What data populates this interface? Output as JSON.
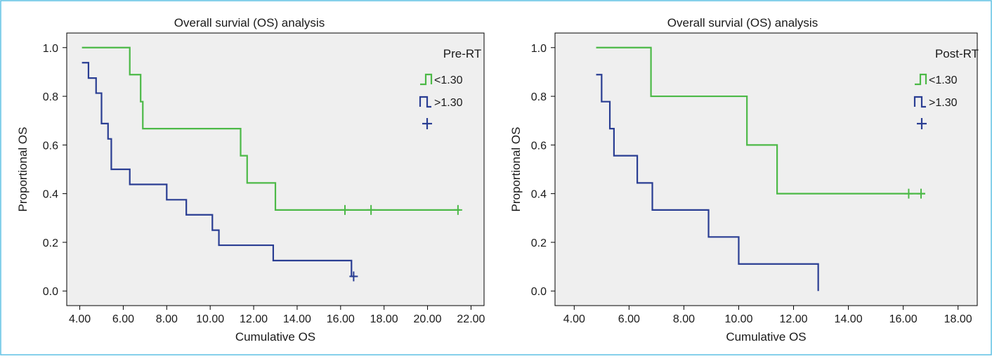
{
  "colors": {
    "plot_bg": "#efefef",
    "frame": "#5ec0e4",
    "axis": "#000000",
    "green": "#4cb947",
    "blue": "#2a3e93"
  },
  "chart_data": [
    {
      "type": "line",
      "subtype": "kaplan-meier step",
      "title": "Overall survial (OS) analysis",
      "xlabel": "Cumulative OS",
      "ylabel": "Proportional OS",
      "xlim": [
        3.4,
        22.6
      ],
      "ylim": [
        -0.06,
        1.06
      ],
      "xticks": [
        4,
        6,
        8,
        10,
        12,
        14,
        16,
        18,
        20,
        22
      ],
      "xtick_labels": [
        "4.00",
        "6.00",
        "8.00",
        "10.00",
        "12.00",
        "14.00",
        "16.00",
        "18.00",
        "20.00",
        "22.00"
      ],
      "yticks": [
        0.0,
        0.2,
        0.4,
        0.6,
        0.8,
        1.0
      ],
      "ytick_labels": [
        "0.0",
        "0.2",
        "0.4",
        "0.6",
        "0.8",
        "1.0"
      ],
      "grid": false,
      "legend": {
        "title": "Pre-RT",
        "position": "top-right",
        "entries": [
          "<1.30",
          ">1.30",
          ""
        ]
      },
      "series": [
        {
          "name": "<1.30",
          "color": "green",
          "x": [
            4.1,
            6.3,
            6.8,
            6.9,
            11.4,
            11.7,
            13.0,
            21.5
          ],
          "y": [
            1.0,
            0.889,
            0.778,
            0.667,
            0.556,
            0.444,
            0.333,
            0.333
          ],
          "censored": [
            [
              16.2,
              0.333
            ],
            [
              17.4,
              0.333
            ],
            [
              21.4,
              0.333
            ]
          ]
        },
        {
          "name": ">1.30",
          "color": "blue",
          "x": [
            4.1,
            4.4,
            4.75,
            5.0,
            5.3,
            5.45,
            6.3,
            8.0,
            8.9,
            10.1,
            10.4,
            12.9,
            16.5,
            16.7
          ],
          "y": [
            0.938,
            0.875,
            0.813,
            0.688,
            0.625,
            0.5,
            0.438,
            0.375,
            0.313,
            0.25,
            0.188,
            0.125,
            0.06,
            0.06
          ],
          "censored": [
            [
              16.6,
              0.06
            ]
          ]
        }
      ]
    },
    {
      "type": "line",
      "subtype": "kaplan-meier step",
      "title": "Overall survial (OS) analysis",
      "xlabel": "Cumulative OS",
      "ylabel": "Proportional OS",
      "xlim": [
        3.3,
        18.7
      ],
      "ylim": [
        -0.06,
        1.06
      ],
      "xticks": [
        4,
        6,
        8,
        10,
        12,
        14,
        16,
        18
      ],
      "xtick_labels": [
        "4.00",
        "6.00",
        "8.00",
        "10.00",
        "12.00",
        "14.00",
        "16.00",
        "18.00"
      ],
      "yticks": [
        0.0,
        0.2,
        0.4,
        0.6,
        0.8,
        1.0
      ],
      "ytick_labels": [
        "0.0",
        "0.2",
        "0.4",
        "0.6",
        "0.8",
        "1.0"
      ],
      "grid": false,
      "legend": {
        "title": "Post-RT",
        "position": "top-right",
        "entries": [
          "<1.30",
          ">1.30",
          ""
        ]
      },
      "series": [
        {
          "name": "<1.30",
          "color": "green",
          "x": [
            4.8,
            6.8,
            10.3,
            11.4,
            16.8
          ],
          "y": [
            1.0,
            0.8,
            0.6,
            0.4,
            0.4
          ],
          "censored": [
            [
              16.2,
              0.4
            ],
            [
              16.65,
              0.4
            ]
          ]
        },
        {
          "name": ">1.30",
          "color": "blue",
          "x": [
            4.8,
            5.0,
            5.3,
            5.45,
            6.3,
            6.85,
            8.9,
            10.0,
            12.9,
            12.9
          ],
          "y": [
            0.889,
            0.778,
            0.667,
            0.556,
            0.444,
            0.333,
            0.222,
            0.111,
            0.111,
            0.0
          ],
          "censored": []
        }
      ]
    }
  ]
}
